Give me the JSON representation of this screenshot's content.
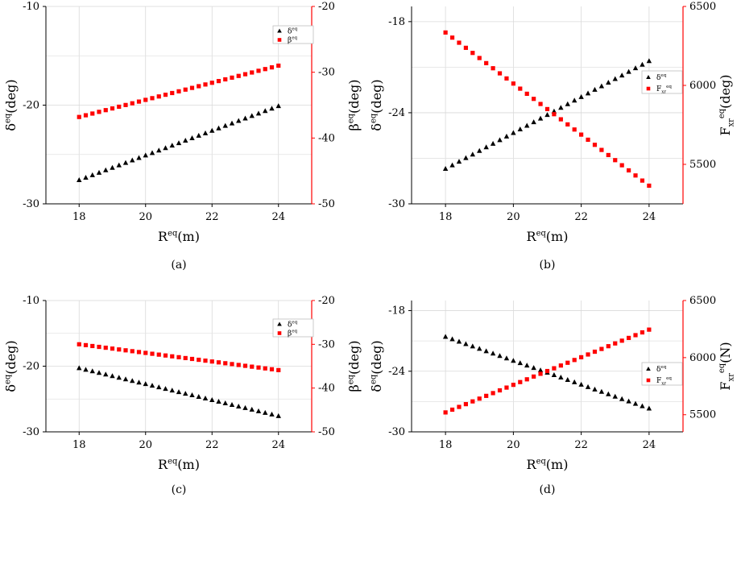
{
  "figure": {
    "panels": [
      {
        "caption": "(a)"
      },
      {
        "caption": "(b)"
      },
      {
        "caption": "(c)"
      },
      {
        "caption": "(d)"
      }
    ]
  },
  "chart_data": [
    {
      "type": "scatter",
      "caption": "(a)",
      "xlabel": {
        "base": "R",
        "sup": "eq",
        "tail": "(m)"
      },
      "ylabel_left": {
        "base": "δ",
        "sup": "eq",
        "tail": "(deg)"
      },
      "ylabel_right": {
        "base": "β",
        "sup": "eq",
        "tail": "(deg)"
      },
      "xlim": [
        17,
        25
      ],
      "xticks": [
        18,
        20,
        22,
        24
      ],
      "ylim_left": [
        -30,
        -10
      ],
      "yticks_left": [
        -30,
        -20,
        -10
      ],
      "ylim_right": [
        -50,
        -20
      ],
      "yticks_right": [
        -50,
        -40,
        -30,
        -20
      ],
      "right_axis_color": "#ff0000",
      "grid": true,
      "legend_position": "top-right",
      "series": [
        {
          "name": {
            "base": "δ",
            "sup": "eq",
            "sub": ""
          },
          "marker": "triangle",
          "color": "#000000",
          "axis": "left",
          "x_start": 18,
          "x_end": 24,
          "y_start": -27.6,
          "y_end": -20.1,
          "n": 31
        },
        {
          "name": {
            "base": "β",
            "sup": "eq",
            "sub": ""
          },
          "marker": "square",
          "color": "#ff0000",
          "axis": "right",
          "x_start": 18,
          "x_end": 24,
          "y_start": -36.8,
          "y_end": -29.0,
          "n": 31
        }
      ]
    },
    {
      "type": "scatter",
      "caption": "(b)",
      "xlabel": {
        "base": "R",
        "sup": "eq",
        "tail": "(m)"
      },
      "ylabel_left": {
        "base": "δ",
        "sup": "eq",
        "tail": "(deg)"
      },
      "ylabel_right": {
        "base": "F",
        "sup": "eq",
        "sub": "xr",
        "tail": "(deg)"
      },
      "xlim": [
        17,
        25
      ],
      "xticks": [
        18,
        20,
        22,
        24
      ],
      "ylim_left": [
        -30,
        -17
      ],
      "yticks_left": [
        -30,
        -24,
        -18
      ],
      "ylim_right": [
        5250,
        6500
      ],
      "yticks_right": [
        5500,
        6000,
        6500
      ],
      "right_axis_color": "#ff0000",
      "grid": true,
      "legend_position": "right",
      "series": [
        {
          "name": {
            "base": "δ",
            "sup": "eq",
            "sub": ""
          },
          "marker": "triangle",
          "color": "#000000",
          "axis": "left",
          "x_start": 18,
          "x_end": 24,
          "y_start": -27.7,
          "y_end": -20.6,
          "n": 31
        },
        {
          "name": {
            "base": "F",
            "sup": "eq",
            "sub": "xr"
          },
          "marker": "square",
          "color": "#ff0000",
          "axis": "right",
          "x_start": 18,
          "x_end": 24,
          "y_start": 6335,
          "y_end": 5365,
          "n": 31
        }
      ]
    },
    {
      "type": "scatter",
      "caption": "(c)",
      "xlabel": {
        "base": "R",
        "sup": "eq",
        "tail": "(m)"
      },
      "ylabel_left": {
        "base": "δ",
        "sup": "eq",
        "tail": "(deg)"
      },
      "ylabel_right": {
        "base": "β",
        "sup": "eq",
        "tail": "(deg)"
      },
      "xlim": [
        17,
        25
      ],
      "xticks": [
        18,
        20,
        22,
        24
      ],
      "ylim_left": [
        -30,
        -10
      ],
      "yticks_left": [
        -30,
        -20,
        -10
      ],
      "ylim_right": [
        -50,
        -20
      ],
      "yticks_right": [
        -50,
        -40,
        -30,
        -20
      ],
      "right_axis_color": "#ff0000",
      "grid": true,
      "legend_position": "top-right",
      "series": [
        {
          "name": {
            "base": "δ",
            "sup": "eq",
            "sub": ""
          },
          "marker": "triangle",
          "color": "#000000",
          "axis": "left",
          "x_start": 18,
          "x_end": 24,
          "y_start": -20.3,
          "y_end": -27.6,
          "n": 31
        },
        {
          "name": {
            "base": "β",
            "sup": "eq",
            "sub": ""
          },
          "marker": "square",
          "color": "#ff0000",
          "axis": "right",
          "x_start": 18,
          "x_end": 24,
          "y_start": -30.0,
          "y_end": -35.9,
          "n": 31
        }
      ]
    },
    {
      "type": "scatter",
      "caption": "(d)",
      "xlabel": {
        "base": "R",
        "sup": "eq",
        "tail": "(m)"
      },
      "ylabel_left": {
        "base": "δ",
        "sup": "eq",
        "tail": "(deg)"
      },
      "ylabel_right": {
        "base": "F",
        "sup": "eq",
        "sub": "xr",
        "tail": "(N)"
      },
      "xlim": [
        17,
        25
      ],
      "xticks": [
        18,
        20,
        22,
        24
      ],
      "ylim_left": [
        -30,
        -17
      ],
      "yticks_left": [
        -30,
        -24,
        -18
      ],
      "ylim_right": [
        5350,
        6500
      ],
      "yticks_right": [
        5500,
        6000,
        6500
      ],
      "right_axis_color": "#ff0000",
      "grid": true,
      "legend_position": "right",
      "series": [
        {
          "name": {
            "base": "δ",
            "sup": "eq",
            "sub": ""
          },
          "marker": "triangle",
          "color": "#000000",
          "axis": "left",
          "x_start": 18,
          "x_end": 24,
          "y_start": -20.6,
          "y_end": -27.7,
          "n": 31
        },
        {
          "name": {
            "base": "F",
            "sup": "eq",
            "sub": "xr"
          },
          "marker": "square",
          "color": "#ff0000",
          "axis": "right",
          "x_start": 18,
          "x_end": 24,
          "y_start": 5520,
          "y_end": 6245,
          "n": 31
        }
      ]
    }
  ]
}
